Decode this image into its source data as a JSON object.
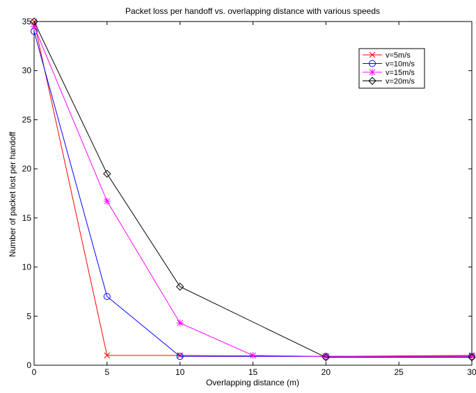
{
  "chart_data": {
    "type": "line",
    "title": "Packet loss per handoff vs. overlapping distance with various speeds",
    "xlabel": "Overlapping distance (m)",
    "ylabel": "Number of packet lost per handoff",
    "xlim": [
      0,
      30
    ],
    "ylim": [
      0,
      35
    ],
    "xticks": [
      0,
      5,
      10,
      15,
      20,
      25,
      30
    ],
    "yticks": [
      0,
      5,
      10,
      15,
      20,
      25,
      30,
      35
    ],
    "grid": false,
    "legend_position": "top-right",
    "series": [
      {
        "name": "v=5m/s",
        "color": "#ff0000",
        "marker": "x",
        "x": [
          0,
          5,
          10,
          20,
          30
        ],
        "y": [
          35,
          1,
          1,
          0.9,
          1
        ]
      },
      {
        "name": "v=10m/s",
        "color": "#0000ff",
        "marker": "circle",
        "x": [
          0,
          5,
          10,
          20,
          30
        ],
        "y": [
          34,
          7,
          0.9,
          0.9,
          0.9
        ]
      },
      {
        "name": "v=15m/s",
        "color": "#ff00ff",
        "marker": "star",
        "x": [
          0,
          5,
          10,
          15,
          20,
          30
        ],
        "y": [
          34.5,
          16.7,
          4.3,
          1,
          0.9,
          0.9
        ]
      },
      {
        "name": "v=20m/s",
        "color": "#000000",
        "marker": "diamond",
        "x": [
          0,
          5,
          10,
          20,
          30
        ],
        "y": [
          35,
          19.5,
          8,
          0.8,
          0.8
        ]
      }
    ]
  }
}
